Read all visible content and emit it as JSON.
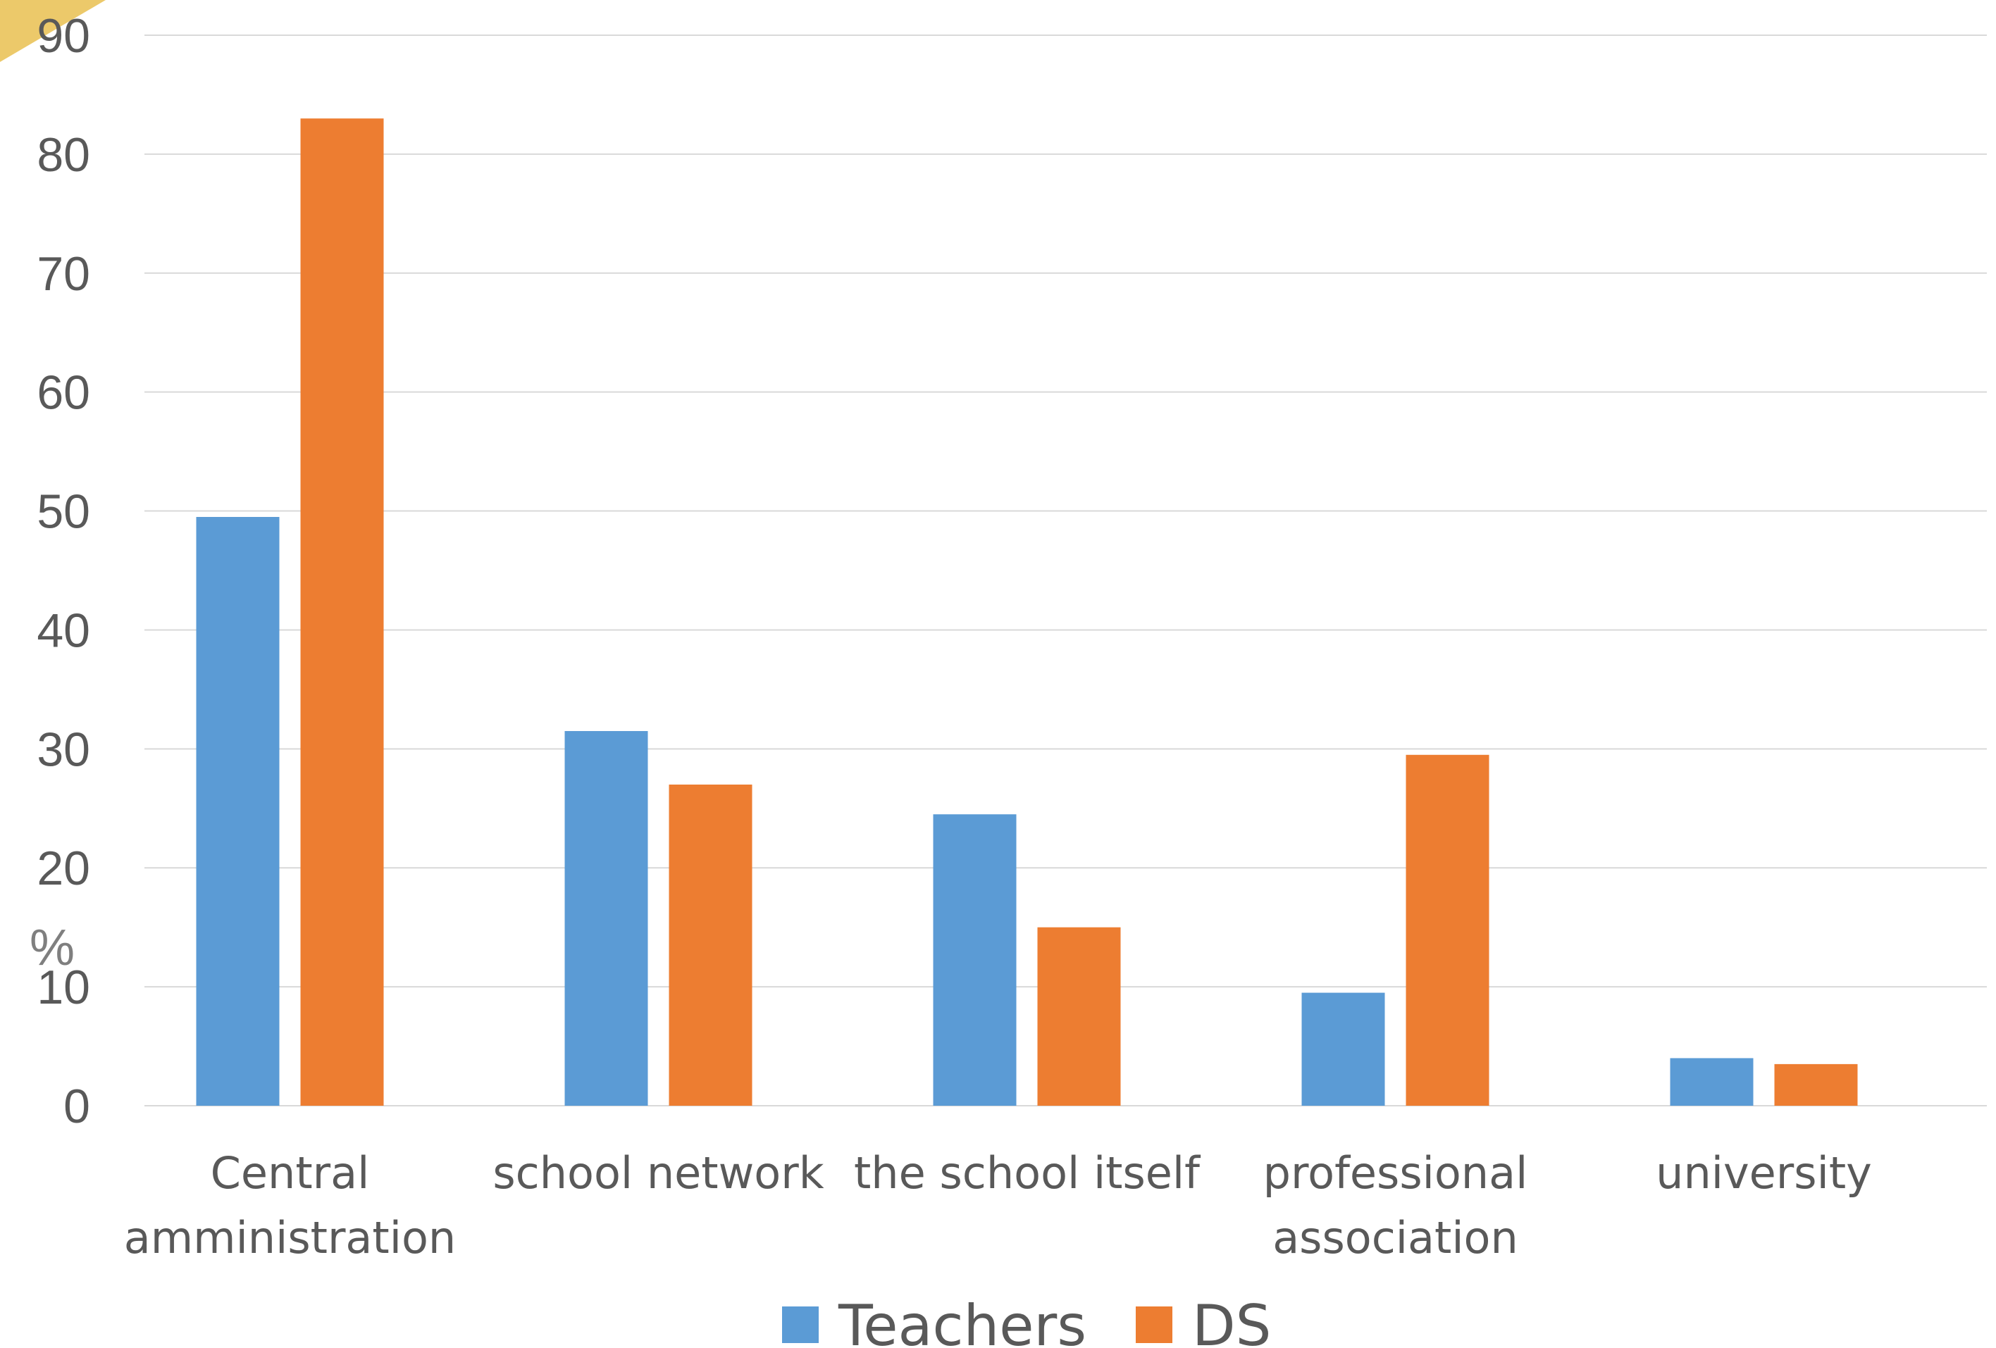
{
  "chart_data": {
    "type": "bar",
    "categories": [
      [
        "Central",
        "amministration"
      ],
      [
        "school network"
      ],
      [
        "the school itself"
      ],
      [
        "professional",
        "association"
      ],
      [
        "university"
      ]
    ],
    "series": [
      {
        "name": "Teachers",
        "color": "#5b9bd5",
        "values": [
          49.5,
          31.5,
          24.5,
          9.5,
          4
        ]
      },
      {
        "name": "DS",
        "color": "#ed7d31",
        "values": [
          83,
          27,
          15,
          29.5,
          3.5
        ]
      }
    ],
    "ylabel": "%",
    "ylim": [
      0,
      90
    ],
    "yticks": [
      0,
      10,
      20,
      30,
      40,
      50,
      60,
      70,
      80,
      90
    ],
    "grid": true,
    "legend": "bottom-center",
    "decoration_color": "#ecc96a"
  }
}
